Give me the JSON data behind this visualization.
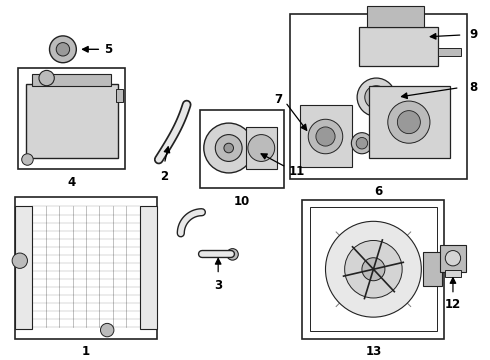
{
  "bg_color": "#ffffff",
  "line_color": "#222222",
  "text_color": "#000000",
  "label_fontsize": 8.5,
  "gray_fill": "#d4d4d4",
  "gray_mid": "#bbbbbb",
  "gray_dark": "#999999",
  "gray_light": "#e8e8e8"
}
